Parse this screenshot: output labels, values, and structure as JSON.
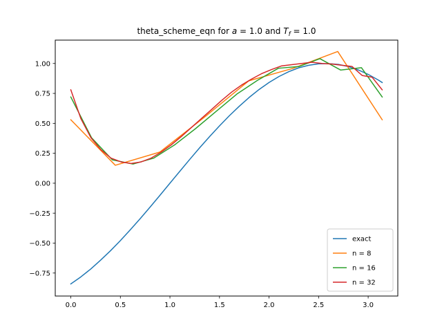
{
  "chart_data": {
    "type": "line",
    "title_parts": {
      "prefix": "theta_scheme_eqn for ",
      "a_symbol": "a",
      "a_eq": " = 1.0 and ",
      "t_symbol": "T",
      "t_sub": "f",
      "t_eq": " = 1.0"
    },
    "xlabel": "",
    "ylabel": "",
    "xlim": [
      -0.157,
      3.299
    ],
    "ylim": [
      -0.942,
      1.195
    ],
    "xticks": [
      0.0,
      0.5,
      1.0,
      1.5,
      2.0,
      2.5,
      3.0
    ],
    "xtick_labels": [
      "0.0",
      "0.5",
      "1.0",
      "1.5",
      "2.0",
      "2.5",
      "3.0"
    ],
    "yticks": [
      -0.75,
      -0.5,
      -0.25,
      0.0,
      0.25,
      0.5,
      0.75,
      1.0
    ],
    "ytick_labels": [
      "−0.75",
      "−0.50",
      "−0.25",
      "0.00",
      "0.25",
      "0.50",
      "0.75",
      "1.00"
    ],
    "grid": false,
    "legend_position": "bottom-right",
    "series": [
      {
        "name": "exact",
        "color": "#1f77b4",
        "x": [
          0.0,
          0.1,
          0.2,
          0.3,
          0.4,
          0.5,
          0.6,
          0.7,
          0.8,
          0.9,
          1.0,
          1.1,
          1.2,
          1.3,
          1.4,
          1.5,
          1.6,
          1.7,
          1.8,
          1.9,
          2.0,
          2.1,
          2.2,
          2.3,
          2.4,
          2.5,
          2.6,
          2.7,
          2.8,
          2.9,
          3.0,
          3.1,
          3.1416
        ],
        "y": [
          -0.841,
          -0.783,
          -0.717,
          -0.643,
          -0.564,
          -0.479,
          -0.389,
          -0.296,
          -0.199,
          -0.1,
          0.0,
          0.1,
          0.199,
          0.296,
          0.389,
          0.479,
          0.564,
          0.643,
          0.717,
          0.783,
          0.841,
          0.891,
          0.932,
          0.964,
          0.985,
          0.997,
          0.999,
          0.992,
          0.974,
          0.946,
          0.909,
          0.863,
          0.841
        ]
      },
      {
        "name": "n = 8",
        "color": "#ff7f0e",
        "x": [
          0.0,
          0.449,
          0.898,
          1.346,
          1.795,
          2.244,
          2.693,
          3.1416
        ],
        "y": [
          0.53,
          0.15,
          0.26,
          0.55,
          0.855,
          0.96,
          1.1,
          0.53
        ]
      },
      {
        "name": "n = 16",
        "color": "#2ca02c",
        "x": [
          0.0,
          0.209,
          0.419,
          0.628,
          0.838,
          1.047,
          1.257,
          1.466,
          1.676,
          1.885,
          2.094,
          2.304,
          2.513,
          2.723,
          2.932,
          3.1416
        ],
        "y": [
          0.72,
          0.38,
          0.195,
          0.16,
          0.21,
          0.32,
          0.455,
          0.6,
          0.745,
          0.86,
          0.96,
          0.975,
          1.04,
          0.945,
          0.965,
          0.72
        ]
      },
      {
        "name": "n = 32",
        "color": "#d62728",
        "x": [
          0.0,
          0.101,
          0.203,
          0.304,
          0.405,
          0.507,
          0.608,
          0.709,
          0.811,
          0.912,
          1.013,
          1.115,
          1.216,
          1.317,
          1.419,
          1.52,
          1.621,
          1.723,
          1.824,
          1.925,
          2.027,
          2.128,
          2.229,
          2.331,
          2.432,
          2.533,
          2.635,
          2.736,
          2.837,
          2.939,
          3.04,
          3.1416
        ],
        "y": [
          0.78,
          0.54,
          0.38,
          0.28,
          0.21,
          0.178,
          0.165,
          0.178,
          0.21,
          0.26,
          0.32,
          0.39,
          0.465,
          0.54,
          0.615,
          0.69,
          0.76,
          0.82,
          0.87,
          0.915,
          0.95,
          0.98,
          0.99,
          1.0,
          1.01,
          1.0,
          0.995,
          0.985,
          0.975,
          0.9,
          0.885,
          0.78
        ]
      }
    ]
  }
}
